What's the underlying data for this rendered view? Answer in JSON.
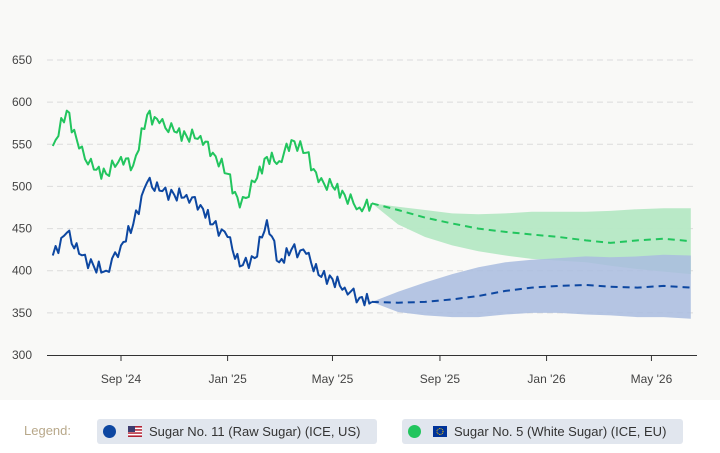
{
  "chart_data": {
    "type": "line",
    "title": "",
    "xlabel": "",
    "ylabel": "",
    "ylim": [
      300,
      650
    ],
    "yticks": [
      "300",
      "350",
      "400",
      "450",
      "500",
      "550",
      "600",
      "650"
    ],
    "xticks": [
      {
        "label": "Sep '24",
        "date": "2024-09-01"
      },
      {
        "label": "Jan '25",
        "date": "2025-01-01"
      },
      {
        "label": "May '25",
        "date": "2025-05-01"
      },
      {
        "label": "Sep '25",
        "date": "2025-09-01"
      },
      {
        "label": "Jan '26",
        "date": "2026-01-01"
      },
      {
        "label": "May '26",
        "date": "2026-05-01"
      }
    ],
    "grid": true,
    "historical_dates": [
      "2024-06-15",
      "2024-07-01",
      "2024-07-15",
      "2024-08-01",
      "2024-08-15",
      "2024-09-01",
      "2024-09-15",
      "2024-10-01",
      "2024-10-15",
      "2024-11-01",
      "2024-11-15",
      "2024-12-01",
      "2024-12-15",
      "2025-01-01",
      "2025-01-15",
      "2025-02-01",
      "2025-02-15",
      "2025-03-01",
      "2025-03-15",
      "2025-04-01",
      "2025-04-15",
      "2025-05-01",
      "2025-05-15",
      "2025-06-01",
      "2025-06-15"
    ],
    "forecast_dates": [
      "2025-06-15",
      "2025-07-15",
      "2025-08-15",
      "2025-09-15",
      "2025-10-15",
      "2025-11-15",
      "2025-12-15",
      "2026-01-15",
      "2026-02-15",
      "2026-03-15",
      "2026-04-15",
      "2026-05-15",
      "2026-06-15"
    ],
    "series": [
      {
        "name": "Sugar No. 11 (Raw Sugar) (ICE, US)",
        "color": "#0d47a1",
        "band_color": "#a9bcdf",
        "values": [
          418,
          445,
          420,
          405,
          400,
          430,
          455,
          505,
          495,
          490,
          490,
          478,
          455,
          440,
          405,
          415,
          460,
          410,
          425,
          420,
          395,
          390,
          380,
          368,
          363
        ],
        "forecast": [
          363,
          362,
          363,
          366,
          370,
          376,
          380,
          382,
          383,
          381,
          380,
          382,
          380
        ],
        "forecast_upper": [
          363,
          375,
          386,
          396,
          404,
          410,
          413,
          415,
          417,
          416,
          417,
          419,
          418
        ],
        "forecast_lower": [
          363,
          351,
          347,
          345,
          345,
          348,
          350,
          350,
          348,
          347,
          345,
          345,
          343
        ]
      },
      {
        "name": "Sugar No. 5 (White Sugar) (ICE, EU)",
        "color": "#22c55e",
        "band_color": "#b5e8c4",
        "values": [
          548,
          590,
          545,
          520,
          515,
          535,
          525,
          585,
          575,
          565,
          560,
          560,
          540,
          515,
          475,
          505,
          535,
          530,
          555,
          540,
          505,
          500,
          490,
          475,
          480
        ],
        "forecast": [
          480,
          472,
          463,
          456,
          450,
          446,
          443,
          440,
          436,
          433,
          436,
          438,
          435
        ],
        "forecast_upper": [
          480,
          476,
          472,
          468,
          467,
          468,
          470,
          470,
          470,
          471,
          473,
          474,
          474
        ],
        "forecast_lower": [
          480,
          455,
          440,
          430,
          423,
          418,
          414,
          412,
          410,
          406,
          402,
          399,
          396
        ]
      }
    ],
    "legend_placement": "bottom"
  },
  "legend": {
    "label": "Legend:",
    "items": [
      {
        "text": "Sugar No. 11 (Raw Sugar) (ICE, US)",
        "flag": "us-flag-icon"
      },
      {
        "text": "Sugar No. 5 (White Sugar) (ICE, EU)",
        "flag": "eu-flag-icon"
      }
    ]
  }
}
